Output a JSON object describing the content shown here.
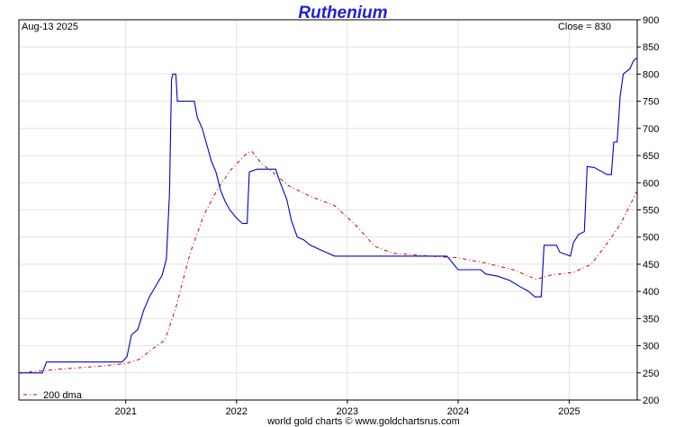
{
  "chart_data": {
    "type": "line",
    "title": "Ruthenium",
    "date_label": "Aug-13  2025",
    "close_label": "Close = 830",
    "legend_label": "200 dma",
    "footer": "world gold charts © www.goldchartsrus.com",
    "x_ticks": [
      "2021",
      "2022",
      "2023",
      "2024",
      "2025"
    ],
    "y_ticks": [
      "200",
      "250",
      "300",
      "350",
      "400",
      "450",
      "500",
      "550",
      "600",
      "650",
      "700",
      "750",
      "800",
      "850",
      "900"
    ],
    "ylim": [
      200,
      900
    ],
    "xlim": [
      "2020-01-15",
      "2025-08-13"
    ],
    "grid": true,
    "legend_position": "bottom-left",
    "colors": {
      "price": "#0000cc",
      "dma": "#cc0000",
      "title": "#1f1fd6"
    },
    "series": [
      {
        "name": "",
        "style": "solid",
        "points": [
          [
            "2020-01-15",
            250
          ],
          [
            "2020-04-01",
            250
          ],
          [
            "2020-04-15",
            270
          ],
          [
            "2020-12-20",
            270
          ],
          [
            "2021-01-05",
            280
          ],
          [
            "2021-01-20",
            320
          ],
          [
            "2021-02-10",
            330
          ],
          [
            "2021-03-01",
            365
          ],
          [
            "2021-03-20",
            390
          ],
          [
            "2021-04-10",
            410
          ],
          [
            "2021-05-01",
            430
          ],
          [
            "2021-05-15",
            460
          ],
          [
            "2021-05-25",
            580
          ],
          [
            "2021-06-01",
            790
          ],
          [
            "2021-06-05",
            800
          ],
          [
            "2021-06-15",
            800
          ],
          [
            "2021-06-20",
            750
          ],
          [
            "2021-08-15",
            750
          ],
          [
            "2021-08-25",
            720
          ],
          [
            "2021-09-10",
            700
          ],
          [
            "2021-09-25",
            670
          ],
          [
            "2021-10-10",
            640
          ],
          [
            "2021-10-25",
            620
          ],
          [
            "2021-11-10",
            585
          ],
          [
            "2021-11-25",
            565
          ],
          [
            "2021-12-10",
            550
          ],
          [
            "2022-01-01",
            535
          ],
          [
            "2022-01-20",
            525
          ],
          [
            "2022-02-05",
            525
          ],
          [
            "2022-02-12",
            620
          ],
          [
            "2022-03-10",
            625
          ],
          [
            "2022-05-10",
            625
          ],
          [
            "2022-05-25",
            600
          ],
          [
            "2022-06-15",
            570
          ],
          [
            "2022-07-01",
            530
          ],
          [
            "2022-07-20",
            500
          ],
          [
            "2022-08-10",
            495
          ],
          [
            "2022-09-01",
            485
          ],
          [
            "2022-10-10",
            475
          ],
          [
            "2022-11-20",
            465
          ],
          [
            "2023-11-25",
            465
          ],
          [
            "2023-12-10",
            455
          ],
          [
            "2024-01-01",
            440
          ],
          [
            "2024-03-15",
            440
          ],
          [
            "2024-04-01",
            432
          ],
          [
            "2024-05-10",
            428
          ],
          [
            "2024-06-20",
            420
          ],
          [
            "2024-07-25",
            408
          ],
          [
            "2024-08-20",
            400
          ],
          [
            "2024-09-10",
            390
          ],
          [
            "2024-10-01",
            390
          ],
          [
            "2024-10-10",
            485
          ],
          [
            "2024-11-20",
            485
          ],
          [
            "2024-12-01",
            472
          ],
          [
            "2025-01-05",
            465
          ],
          [
            "2025-01-15",
            490
          ],
          [
            "2025-02-01",
            505
          ],
          [
            "2025-02-20",
            510
          ],
          [
            "2025-03-01",
            630
          ],
          [
            "2025-03-25",
            628
          ],
          [
            "2025-04-20",
            620
          ],
          [
            "2025-05-05",
            615
          ],
          [
            "2025-05-20",
            615
          ],
          [
            "2025-05-28",
            675
          ],
          [
            "2025-06-08",
            675
          ],
          [
            "2025-06-18",
            760
          ],
          [
            "2025-06-28",
            800
          ],
          [
            "2025-07-20",
            810
          ],
          [
            "2025-08-01",
            825
          ],
          [
            "2025-08-13",
            830
          ]
        ]
      },
      {
        "name": "200 dma",
        "style": "dashed",
        "points": [
          [
            "2020-01-15",
            250
          ],
          [
            "2020-06-01",
            257
          ],
          [
            "2020-10-01",
            262
          ],
          [
            "2021-01-01",
            267
          ],
          [
            "2021-02-15",
            275
          ],
          [
            "2021-04-01",
            295
          ],
          [
            "2021-05-10",
            310
          ],
          [
            "2021-06-15",
            370
          ],
          [
            "2021-08-01",
            470
          ],
          [
            "2021-09-15",
            540
          ],
          [
            "2021-11-01",
            590
          ],
          [
            "2021-12-15",
            625
          ],
          [
            "2022-02-05",
            655
          ],
          [
            "2022-02-20",
            658
          ],
          [
            "2022-03-25",
            635
          ],
          [
            "2022-05-10",
            615
          ],
          [
            "2022-06-20",
            595
          ],
          [
            "2022-09-01",
            575
          ],
          [
            "2022-11-20",
            558
          ],
          [
            "2023-02-01",
            520
          ],
          [
            "2023-04-01",
            483
          ],
          [
            "2023-06-01",
            470
          ],
          [
            "2023-10-01",
            465
          ],
          [
            "2024-01-01",
            462
          ],
          [
            "2024-04-01",
            452
          ],
          [
            "2024-07-01",
            440
          ],
          [
            "2024-09-15",
            422
          ],
          [
            "2024-11-01",
            430
          ],
          [
            "2025-01-15",
            435
          ],
          [
            "2025-03-15",
            450
          ],
          [
            "2025-05-15",
            495
          ],
          [
            "2025-06-20",
            525
          ],
          [
            "2025-08-13",
            585
          ]
        ]
      }
    ]
  }
}
